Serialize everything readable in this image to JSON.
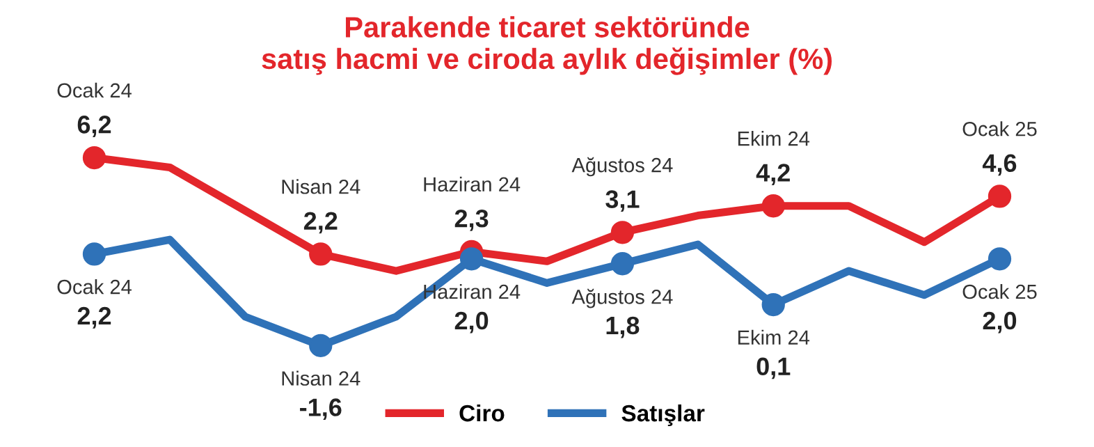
{
  "chart_data": {
    "type": "line",
    "title": "Parakende ticaret sektöründe\nsatış hacmi ve ciroda aylık değişimler (%)",
    "categories": [
      null,
      null,
      null,
      null,
      null,
      null,
      null,
      null,
      null,
      null,
      null,
      null,
      null
    ],
    "series": [
      {
        "name": "Ciro",
        "color": "#e3262b",
        "values": [
          6.2,
          5.8,
          4.0,
          2.2,
          1.5,
          2.3,
          1.9,
          3.1,
          3.8,
          4.2,
          4.2,
          2.7,
          4.6
        ],
        "value_labels": [
          "6,2",
          null,
          null,
          "2,2",
          null,
          "2,3",
          null,
          "3,1",
          null,
          "4,2",
          null,
          null,
          "4,6"
        ]
      },
      {
        "name": "Satışlar",
        "color": "#2f72b8",
        "values": [
          2.2,
          2.8,
          -0.4,
          -1.6,
          -0.4,
          2.0,
          1.0,
          1.8,
          2.6,
          0.1,
          1.5,
          0.5,
          2.0
        ],
        "value_labels": [
          "2,2",
          null,
          null,
          "-1,6",
          null,
          "2,0",
          null,
          "1,8",
          null,
          "0,1",
          null,
          null,
          "2,0"
        ]
      }
    ],
    "annotations": [
      "Ocak 24",
      "Nisan 24",
      "Haziran 24",
      "Ağustos 24",
      "Ekim 24",
      "Ocak 25",
      "Ocak 24",
      "Nisan 24",
      "Haziran 24",
      "Ağustos 24",
      "Ekim 24",
      "Ocak 25"
    ],
    "line_style": "solid",
    "legend": "bottom"
  }
}
